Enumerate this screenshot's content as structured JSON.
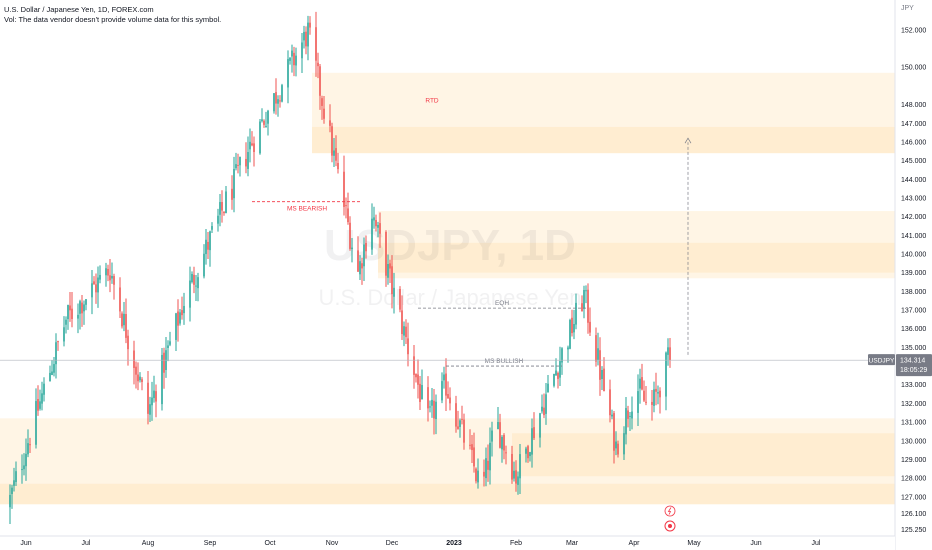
{
  "header": {
    "title": "U.S. Dollar / Japanese Yen, 1D, FOREX.com",
    "volume_note": "Vol: The data vendor doesn't provide volume data for this symbol."
  },
  "watermark": {
    "symbol": "USDJPY, 1D",
    "name": "U.S. Dollar / Japanese Yen"
  },
  "price_axis": {
    "unit": "JPY",
    "ticks": [
      "125.250",
      "126.100",
      "127.000",
      "128.000",
      "129.000",
      "130.000",
      "131.000",
      "132.000",
      "133.000",
      "135.000",
      "136.000",
      "137.000",
      "138.000",
      "139.000",
      "140.000",
      "141.000",
      "142.000",
      "143.000",
      "144.000",
      "145.000",
      "146.000",
      "147.000",
      "148.000",
      "150.000",
      "152.000"
    ]
  },
  "time_axis": {
    "ticks": [
      {
        "label": "Jun",
        "bold": false
      },
      {
        "label": "Jul",
        "bold": false
      },
      {
        "label": "Aug",
        "bold": false
      },
      {
        "label": "Sep",
        "bold": false
      },
      {
        "label": "Oct",
        "bold": false
      },
      {
        "label": "Nov",
        "bold": false
      },
      {
        "label": "Dec",
        "bold": false
      },
      {
        "label": "2023",
        "bold": true
      },
      {
        "label": "Feb",
        "bold": false
      },
      {
        "label": "Mar",
        "bold": false
      },
      {
        "label": "Apr",
        "bold": false
      },
      {
        "label": "May",
        "bold": false
      },
      {
        "label": "Jun",
        "bold": false
      },
      {
        "label": "Jul",
        "bold": false
      }
    ]
  },
  "last_price": {
    "symbol": "USDJPY",
    "price": "134.314",
    "countdown": "18:05:29"
  },
  "colors": {
    "up": "#26a69a",
    "down": "#ef5350",
    "zone": "#fff3e0",
    "zone_alt": "#ffe9c9",
    "annot": "#f23645",
    "grey": "#787b86"
  },
  "chart_data": {
    "type": "candlestick",
    "symbol": "USDJPY",
    "timeframe": "1D",
    "ylim": [
      124.9,
      153.6
    ],
    "grid": false,
    "swing_points": [
      {
        "date": "2022-05-24",
        "price": 126.5
      },
      {
        "date": "2022-06-03",
        "price": 130.0
      },
      {
        "date": "2022-06-22",
        "price": 136.5
      },
      {
        "date": "2022-07-14",
        "price": 139.2
      },
      {
        "date": "2022-08-02",
        "price": 131.5
      },
      {
        "date": "2022-08-20",
        "price": 137.5
      },
      {
        "date": "2022-09-22",
        "price": 145.8
      },
      {
        "date": "2022-10-21",
        "price": 151.9
      },
      {
        "date": "2022-11-15",
        "price": 139.0
      },
      {
        "date": "2022-11-22",
        "price": 142.2
      },
      {
        "date": "2022-12-20",
        "price": 131.0
      },
      {
        "date": "2022-12-29",
        "price": 133.0
      },
      {
        "date": "2023-01-16",
        "price": 127.3
      },
      {
        "date": "2023-01-23",
        "price": 131.0
      },
      {
        "date": "2023-02-02",
        "price": 128.1
      },
      {
        "date": "2023-03-08",
        "price": 137.8
      },
      {
        "date": "2023-03-24",
        "price": 129.7
      },
      {
        "date": "2023-04-03",
        "price": 133.0
      },
      {
        "date": "2023-04-10",
        "price": 131.5
      },
      {
        "date": "2023-04-19",
        "price": 134.3
      }
    ],
    "zones": [
      {
        "from": "2022-10-22",
        "to": "end",
        "low": 145.4,
        "high": 149.7,
        "label": "RTD"
      },
      {
        "from": "2022-11-24",
        "to": "end",
        "low": 138.7,
        "high": 142.3,
        "label": ""
      },
      {
        "from": "start",
        "to": "end",
        "low": 126.6,
        "high": 131.2,
        "label": ""
      }
    ],
    "levels": [
      {
        "label": "MS BEARISH",
        "price": 142.8,
        "from": "2022-09-22",
        "to": "2022-11-16"
      },
      {
        "label": "EQH",
        "price": 137.1,
        "from": "2022-12-14",
        "to": "2023-03-08"
      },
      {
        "label": "MS BULLISH",
        "price": 134.0,
        "from": "2022-12-28",
        "to": "2023-02-24"
      }
    ],
    "projection": {
      "from": "2023-04-20",
      "to_price": 146.2
    }
  }
}
